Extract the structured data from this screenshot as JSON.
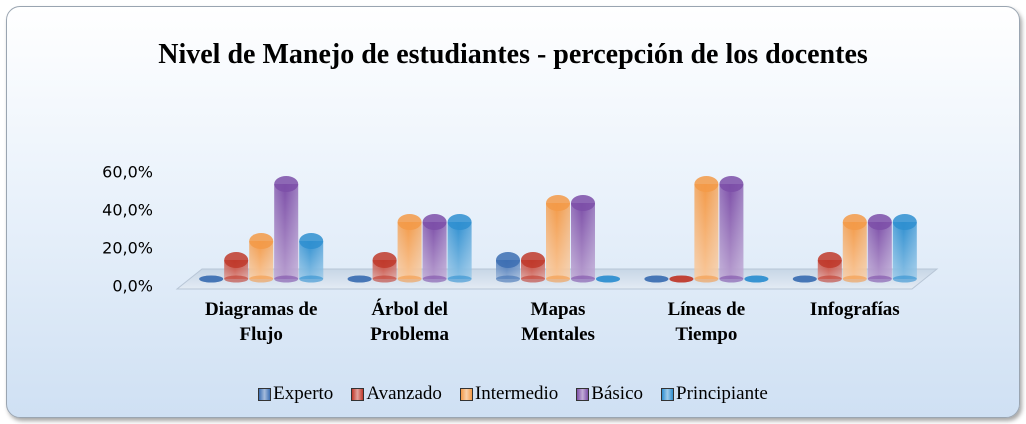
{
  "chart_data": {
    "type": "bar",
    "title": "Nivel de Manejo de estudiantes - percepción de los docentes",
    "categories": [
      "Diagramas de Flujo",
      "Árbol del Problema",
      "Mapas Mentales",
      "Líneas de Tiempo",
      "Infografías"
    ],
    "series": [
      {
        "name": "Experto",
        "color": "#3d6fb3",
        "values": [
          0,
          0,
          10,
          0,
          0
        ]
      },
      {
        "name": "Avanzado",
        "color": "#c0392b",
        "values": [
          10,
          10,
          10,
          0,
          10
        ]
      },
      {
        "name": "Intermedio",
        "color": "#f39a48",
        "values": [
          20,
          30,
          40,
          50,
          30
        ]
      },
      {
        "name": "Básico",
        "color": "#7d4fa8",
        "values": [
          50,
          30,
          40,
          50,
          30
        ]
      },
      {
        "name": "Principiante",
        "color": "#2f8fd0",
        "values": [
          20,
          30,
          0,
          0,
          30
        ]
      }
    ],
    "ylim": [
      0,
      60
    ],
    "yticks": [
      {
        "value": 0,
        "label": "0,0%"
      },
      {
        "value": 20,
        "label": "20,0%"
      },
      {
        "value": 40,
        "label": "40,0%"
      },
      {
        "value": 60,
        "label": "60,0%"
      }
    ],
    "legend": "bottom"
  }
}
